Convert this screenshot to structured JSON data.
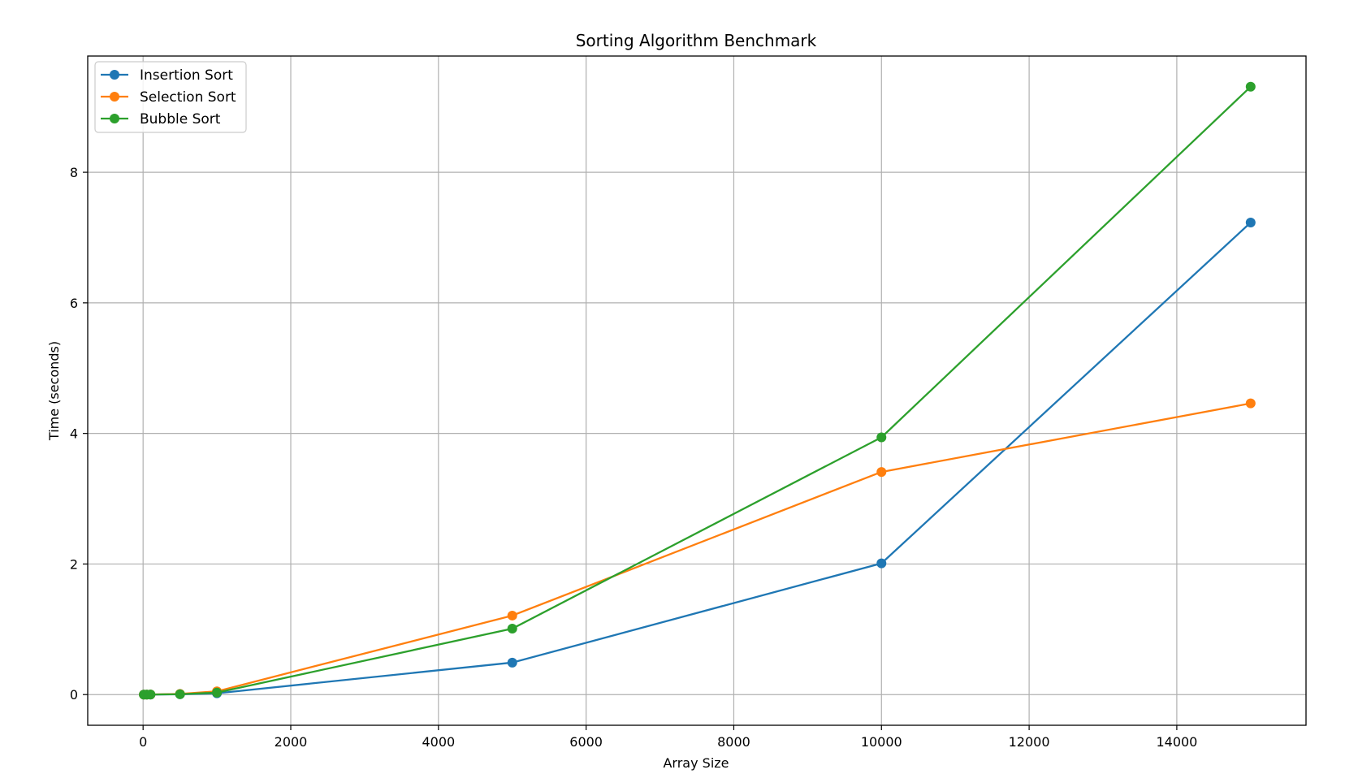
{
  "chart_data": {
    "type": "line",
    "title": "Sorting Algorithm Benchmark",
    "xlabel": "Array Size",
    "ylabel": "Time (seconds)",
    "xlim": [
      -750,
      15750
    ],
    "ylim": [
      -0.47,
      9.78
    ],
    "x_ticks": [
      0,
      2000,
      4000,
      6000,
      8000,
      10000,
      12000,
      14000
    ],
    "y_ticks": [
      0,
      2,
      4,
      6,
      8
    ],
    "grid": true,
    "legend_position": "top-left",
    "x": [
      10,
      50,
      100,
      500,
      1000,
      5000,
      10000,
      15000
    ],
    "series": [
      {
        "name": "Insertion Sort",
        "color": "#1f77b4",
        "values": [
          0.0,
          0.0,
          0.0,
          0.005,
          0.02,
          0.49,
          2.01,
          7.23
        ]
      },
      {
        "name": "Selection Sort",
        "color": "#ff7f0e",
        "values": [
          0.0,
          0.0,
          0.001,
          0.01,
          0.05,
          1.21,
          3.41,
          4.46
        ]
      },
      {
        "name": "Bubble Sort",
        "color": "#2ca02c",
        "values": [
          0.0,
          0.0,
          0.001,
          0.006,
          0.03,
          1.01,
          3.94,
          9.31
        ]
      }
    ]
  }
}
